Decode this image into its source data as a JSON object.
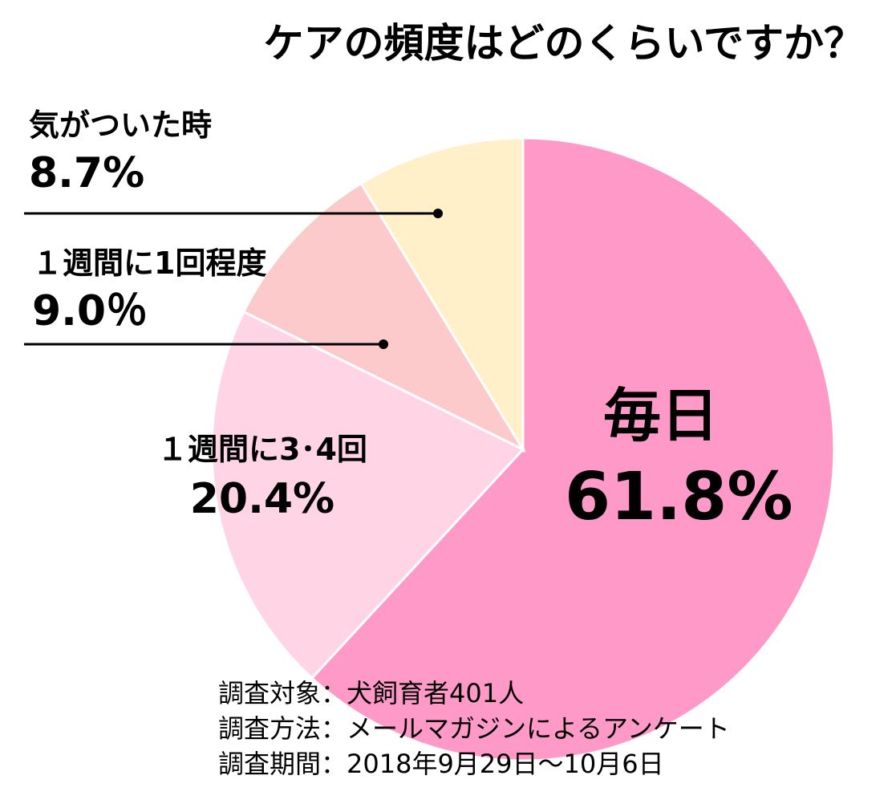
{
  "chart_data": {
    "type": "pie",
    "title": "ケアの頻度はどのくらいですか？",
    "slices": [
      {
        "label": "毎日",
        "value": 61.8,
        "value_label": "61.8%",
        "color": "#ff99c8"
      },
      {
        "label": "１週間に3･4回",
        "value": 20.4,
        "value_label": "20.4%",
        "color": "#ffd5e6"
      },
      {
        "label": "１週間に1回程度",
        "value": 9.0,
        "value_label": "9.0％",
        "color": "#fccaca"
      },
      {
        "label": "気がついた時",
        "value": 8.7,
        "value_label": "8.7%",
        "color": "#fff0ca"
      }
    ],
    "start_angle_deg": 0,
    "direction": "clockwise"
  },
  "footer": {
    "line1": "調査対象：犬飼育者401人",
    "line2": "調査方法：メールマガジンによるアンケート",
    "line3": "調査期間：2018年9月29日～10月6日"
  }
}
